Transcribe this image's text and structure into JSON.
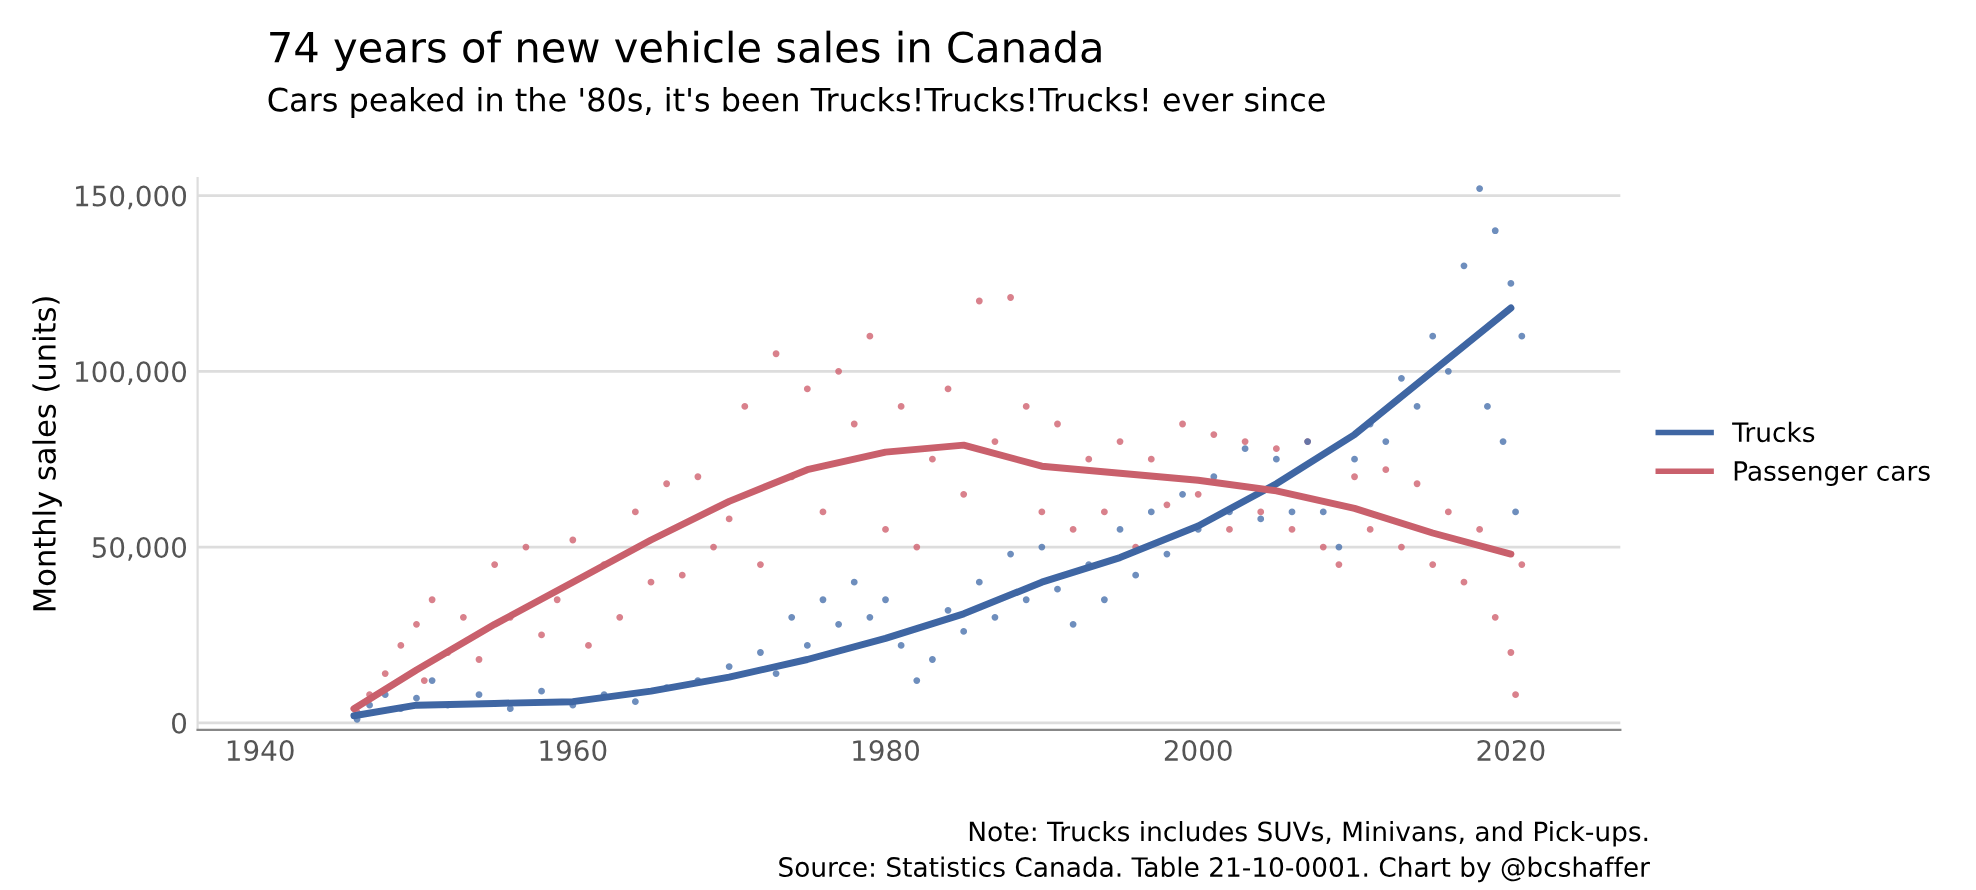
{
  "chart_data": {
    "type": "scatter",
    "title": "74 years of new vehicle sales in Canada",
    "subtitle": "Cars peaked in the '80s, it's been Trucks!Trucks!Trucks! ever since",
    "ylabel": "Monthly sales (units)",
    "annotations": [
      "Note: Trucks includes SUVs, Minivans, and Pick-ups.",
      "Source: Statistics Canada. Table 21-10-0001. Chart by @bcshaffer"
    ],
    "xlim": [
      1936,
      2027
    ],
    "ylim": [
      -2000,
      155000
    ],
    "xticks": [
      1940,
      1960,
      1980,
      2000,
      2020
    ],
    "yticks": [
      0,
      {
        "value": 50000,
        "label": "50,000"
      },
      {
        "value": 100000,
        "label": "100,000"
      },
      {
        "value": 150000,
        "label": "150,000"
      }
    ],
    "grid": "y",
    "legend": "right",
    "series": [
      {
        "marker": "circle",
        "color": "#d0616f",
        "x": [
          1946.2,
          1947,
          1948,
          1949,
          1950,
          1950.5,
          1951,
          1952,
          1953,
          1954,
          1955,
          1956,
          1957,
          1958,
          1959,
          1960,
          1961,
          1962,
          1963,
          1964,
          1965,
          1966,
          1967,
          1968,
          1969,
          1970,
          1971,
          1972,
          1973,
          1974,
          1975,
          1976,
          1977,
          1978,
          1979,
          1980,
          1981,
          1982,
          1983,
          1984,
          1985,
          1986,
          1987,
          1988,
          1989,
          1990,
          1991,
          1992,
          1993,
          1994,
          1995,
          1996,
          1997,
          1998,
          1999,
          2000,
          2001,
          2002,
          2003,
          2004,
          2005,
          2006,
          2007,
          2008,
          2009,
          2010,
          2011,
          2012,
          2013,
          2014,
          2015,
          2016,
          2017,
          2018,
          2019,
          2020,
          2020.3,
          2020.7
        ],
        "values": [
          3000,
          8000,
          14000,
          22000,
          28000,
          12000,
          35000,
          20000,
          30000,
          18000,
          45000,
          30000,
          50000,
          25000,
          35000,
          52000,
          22000,
          45000,
          30000,
          60000,
          40000,
          68000,
          42000,
          70000,
          50000,
          58000,
          90000,
          45000,
          105000,
          70000,
          95000,
          60000,
          100000,
          85000,
          110000,
          55000,
          90000,
          50000,
          75000,
          95000,
          65000,
          120000,
          80000,
          121000,
          90000,
          60000,
          85000,
          55000,
          75000,
          60000,
          80000,
          50000,
          75000,
          62000,
          85000,
          65000,
          82000,
          55000,
          80000,
          60000,
          78000,
          55000,
          80000,
          50000,
          45000,
          70000,
          55000,
          72000,
          50000,
          68000,
          45000,
          60000,
          40000,
          55000,
          30000,
          20000,
          8000,
          45000
        ]
      },
      {
        "marker": "circle",
        "color": "#4a72ad",
        "x": [
          1946.2,
          1947,
          1948,
          1949,
          1950,
          1951,
          1952,
          1954,
          1956,
          1958,
          1960,
          1962,
          1964,
          1966,
          1968,
          1970,
          1972,
          1973,
          1974,
          1975,
          1976,
          1977,
          1978,
          1979,
          1980,
          1981,
          1982,
          1983,
          1984,
          1985,
          1986,
          1987,
          1988,
          1989,
          1990,
          1991,
          1992,
          1993,
          1994,
          1995,
          1996,
          1997,
          1998,
          1999,
          2000,
          2001,
          2002,
          2003,
          2004,
          2005,
          2006,
          2007,
          2008,
          2009,
          2010,
          2011,
          2012,
          2013,
          2014,
          2015,
          2016,
          2017,
          2018,
          2018.5,
          2019,
          2019.5,
          2020,
          2020.3,
          2020.7
        ],
        "values": [
          1000,
          5000,
          8000,
          4000,
          7000,
          12000,
          5000,
          8000,
          4000,
          9000,
          5000,
          8000,
          6000,
          10000,
          12000,
          16000,
          20000,
          14000,
          30000,
          22000,
          35000,
          28000,
          40000,
          30000,
          35000,
          22000,
          12000,
          18000,
          32000,
          26000,
          40000,
          30000,
          48000,
          35000,
          50000,
          38000,
          28000,
          45000,
          35000,
          55000,
          42000,
          60000,
          48000,
          65000,
          55000,
          70000,
          60000,
          78000,
          58000,
          75000,
          60000,
          80000,
          60000,
          50000,
          75000,
          85000,
          80000,
          98000,
          90000,
          110000,
          100000,
          130000,
          152000,
          90000,
          140000,
          80000,
          125000,
          60000,
          110000
        ]
      },
      {
        "type": "line",
        "name": "Trucks",
        "color": "#3f66a3",
        "x": [
          1946,
          1950,
          1955,
          1960,
          1965,
          1970,
          1975,
          1980,
          1985,
          1990,
          1995,
          2000,
          2005,
          2010,
          2015,
          2020
        ],
        "values": [
          2000,
          5000,
          5500,
          6000,
          9000,
          13000,
          18000,
          24000,
          31000,
          40000,
          47000,
          56000,
          68000,
          82000,
          100000,
          118000
        ]
      },
      {
        "type": "line",
        "name": "Passenger cars",
        "color": "#c9606c",
        "x": [
          1946,
          1950,
          1955,
          1960,
          1965,
          1970,
          1975,
          1980,
          1985,
          1990,
          1995,
          2000,
          2005,
          2010,
          2015,
          2020
        ],
        "values": [
          4000,
          15000,
          28000,
          40000,
          52000,
          63000,
          72000,
          77000,
          79000,
          73000,
          71000,
          69000,
          66000,
          61000,
          54000,
          48000
        ]
      }
    ]
  }
}
